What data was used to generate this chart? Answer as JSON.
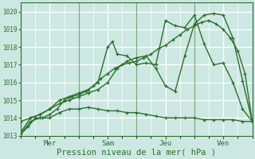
{
  "xlabel": "Pression niveau de la mer( hPa )",
  "bg_color": "#cde8e2",
  "grid_color": "#ffffff",
  "line_color": "#2d6e2d",
  "ylim": [
    1013.0,
    1020.5
  ],
  "yticks": [
    1013,
    1014,
    1015,
    1016,
    1017,
    1018,
    1019,
    1020
  ],
  "xlim": [
    0,
    96
  ],
  "day_ticks": [
    12,
    36,
    60,
    84
  ],
  "day_labels": [
    "Mer",
    "Sam",
    "Jeu",
    "Ven"
  ],
  "vlines": [
    0,
    24,
    48,
    72,
    96
  ],
  "line1_x": [
    0,
    3,
    6,
    9,
    12,
    15,
    18,
    21,
    24,
    27,
    30,
    33,
    36,
    39,
    42,
    45,
    48,
    51,
    54,
    57,
    60,
    63,
    66,
    69,
    72,
    75,
    78,
    81,
    84,
    87,
    90,
    93,
    96
  ],
  "line1_y": [
    1013.1,
    1013.5,
    1014.0,
    1014.0,
    1014.2,
    1014.5,
    1015.0,
    1015.2,
    1015.3,
    1015.5,
    1015.8,
    1016.2,
    1016.5,
    1016.8,
    1017.0,
    1017.1,
    1017.2,
    1017.4,
    1017.6,
    1017.9,
    1018.1,
    1018.4,
    1018.7,
    1019.0,
    1019.2,
    1019.4,
    1019.5,
    1019.3,
    1019.0,
    1018.5,
    1017.8,
    1016.5,
    1013.8
  ],
  "line2_x": [
    0,
    4,
    8,
    12,
    16,
    20,
    24,
    28,
    32,
    36,
    40,
    44,
    48,
    52,
    56,
    60,
    64,
    68,
    72,
    76,
    80,
    84,
    88,
    92,
    96
  ],
  "line2_y": [
    1013.1,
    1013.8,
    1014.0,
    1014.0,
    1014.3,
    1014.5,
    1014.5,
    1014.6,
    1014.5,
    1014.4,
    1014.4,
    1014.3,
    1014.3,
    1014.2,
    1014.1,
    1014.0,
    1014.0,
    1014.0,
    1014.0,
    1013.9,
    1013.9,
    1013.9,
    1013.9,
    1013.8,
    1013.8
  ],
  "line3_x": [
    0,
    4,
    8,
    12,
    16,
    20,
    24,
    28,
    32,
    36,
    40,
    44,
    48,
    52,
    56,
    60,
    64,
    68,
    72,
    76,
    80,
    84,
    88,
    92,
    96
  ],
  "line3_y": [
    1013.2,
    1014.0,
    1014.2,
    1014.5,
    1014.8,
    1015.0,
    1015.2,
    1015.4,
    1015.6,
    1016.0,
    1016.8,
    1017.2,
    1017.4,
    1017.5,
    1016.8,
    1015.8,
    1015.5,
    1017.5,
    1019.3,
    1019.8,
    1019.9,
    1019.8,
    1018.5,
    1016.1,
    1013.8
  ],
  "line4_x": [
    0,
    4,
    8,
    12,
    16,
    20,
    24,
    28,
    32,
    36,
    38,
    40,
    44,
    48,
    52,
    56,
    60,
    64,
    68,
    72,
    76,
    80,
    84,
    88,
    92,
    96
  ],
  "line4_y": [
    1013.8,
    1014.0,
    1014.2,
    1014.5,
    1015.0,
    1015.2,
    1015.4,
    1015.6,
    1016.0,
    1018.0,
    1018.3,
    1017.6,
    1017.5,
    1017.0,
    1017.1,
    1017.0,
    1019.5,
    1019.2,
    1019.1,
    1019.8,
    1018.2,
    1017.0,
    1017.1,
    1016.0,
    1014.5,
    1013.8
  ]
}
